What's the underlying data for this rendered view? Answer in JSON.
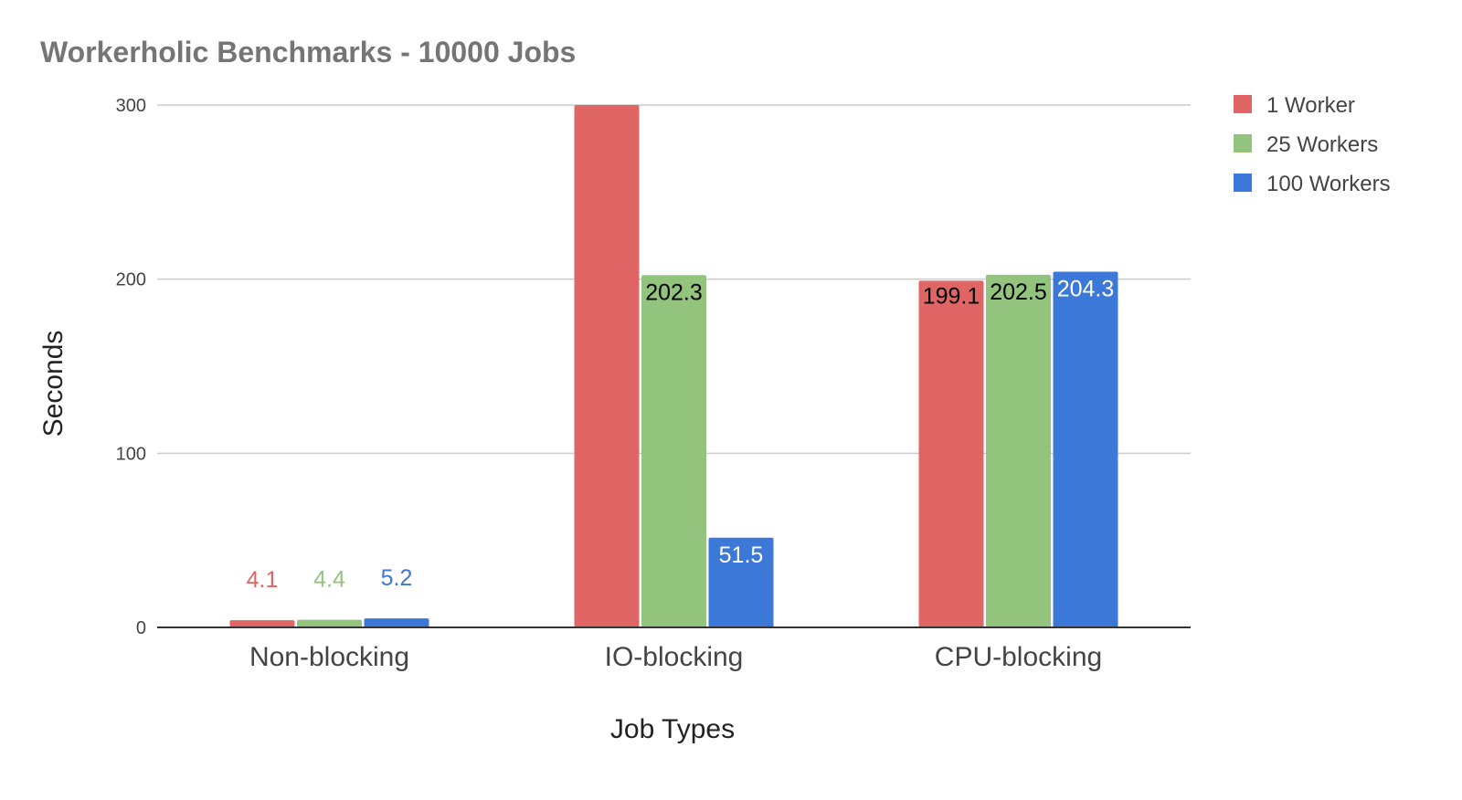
{
  "chart_data": {
    "type": "bar",
    "title": "Workerholic Benchmarks - 10000 Jobs",
    "xlabel": "Job Types",
    "ylabel": "Seconds",
    "categories": [
      "Non-blocking",
      "IO-blocking",
      "CPU-blocking"
    ],
    "ylim": [
      0,
      300
    ],
    "yticks": [
      0,
      100,
      200,
      300
    ],
    "grid": true,
    "legend_position": "right",
    "series": [
      {
        "name": "1 Worker",
        "color": "#e06666",
        "values": [
          4.1,
          300,
          199.1
        ],
        "labels": [
          "4.1",
          "",
          "199.1"
        ]
      },
      {
        "name": "25 Workers",
        "color": "#93c47d",
        "values": [
          4.4,
          202.3,
          202.5
        ],
        "labels": [
          "4.4",
          "202.3",
          "202.5"
        ]
      },
      {
        "name": "100 Workers",
        "color": "#3c78d8",
        "values": [
          5.2,
          51.5,
          204.3
        ],
        "labels": [
          "5.2",
          "51.5",
          "204.3"
        ]
      }
    ]
  }
}
